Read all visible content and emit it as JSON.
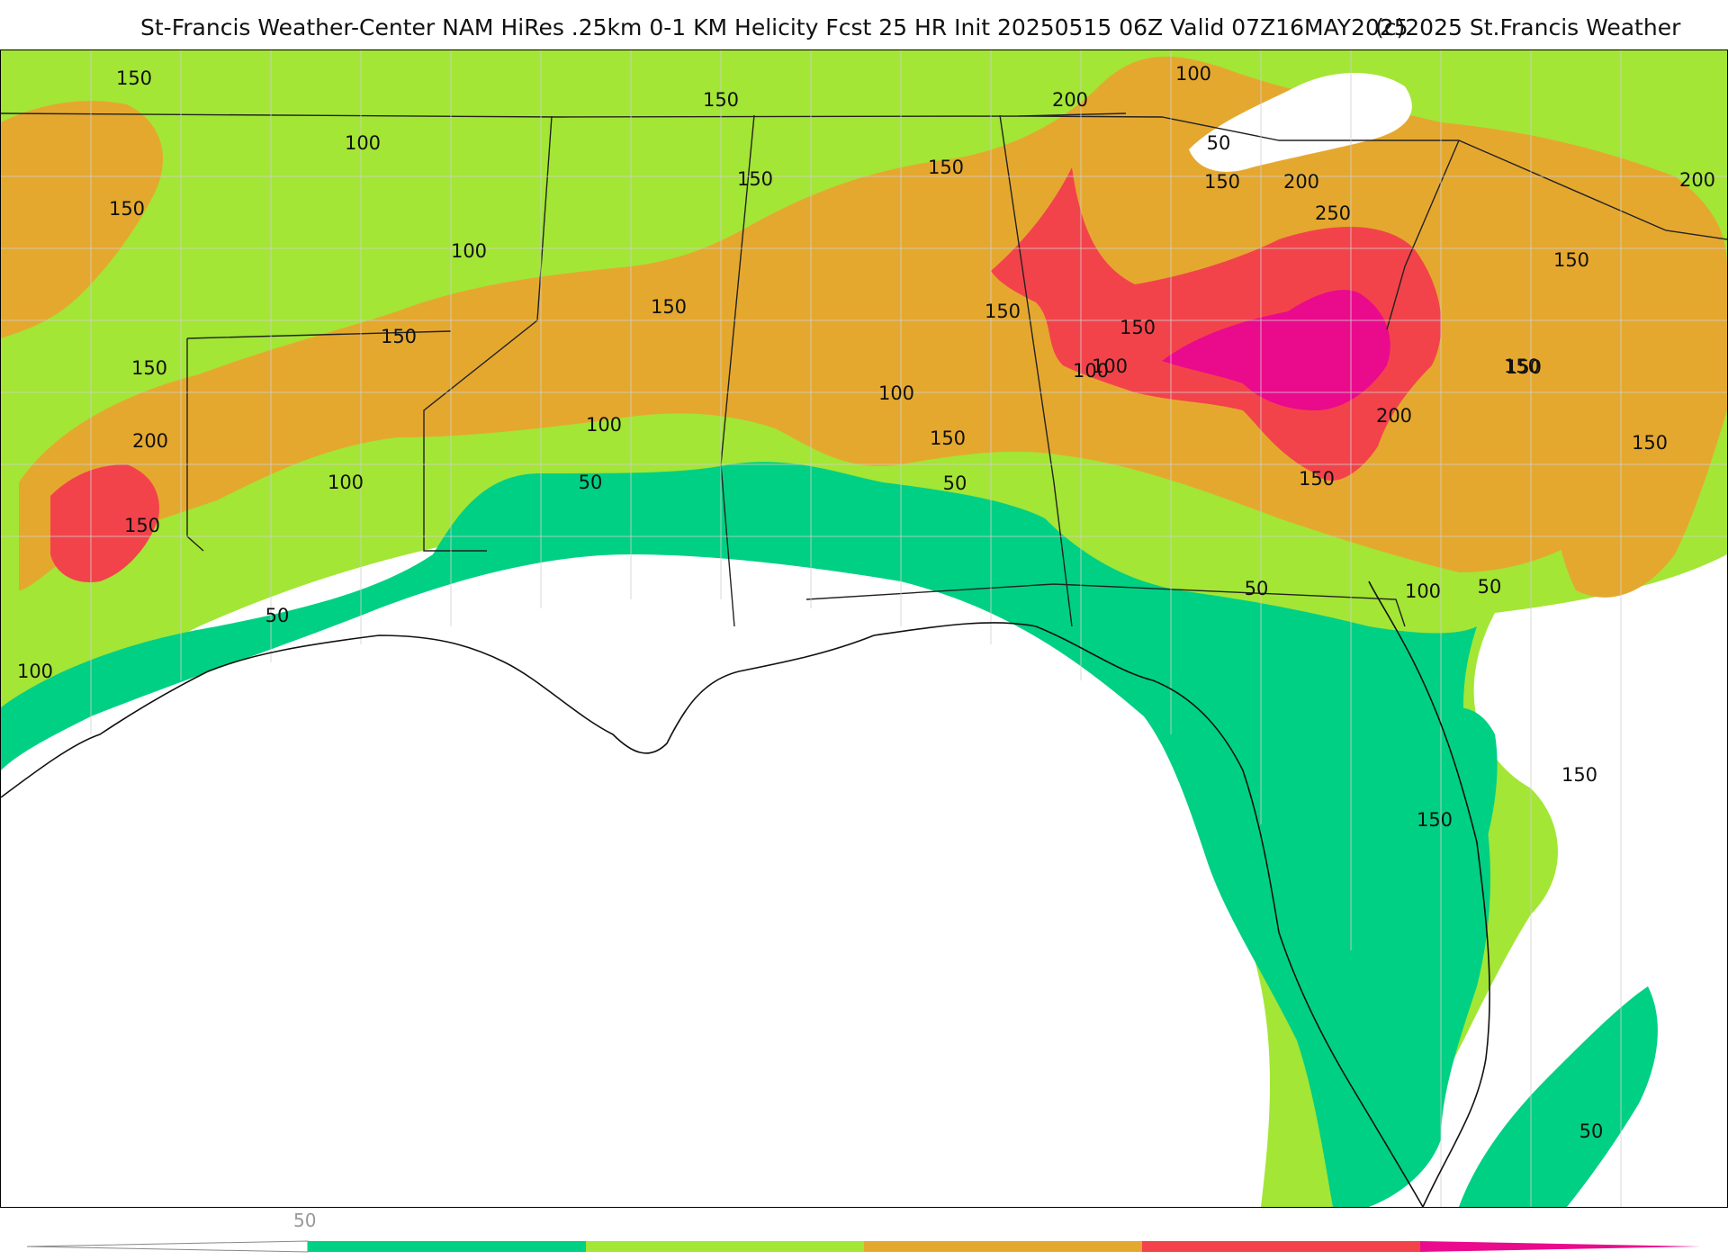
{
  "header": {
    "title": "St-Francis Weather-Center NAM HiRes .25km 0-1 KM Helicity Fcst 25 HR Init 20250515 06Z  Valid 07Z16MAY2025",
    "copyright": "(c)2025 St.Francis Weather"
  },
  "map": {
    "levels": [
      50,
      100,
      150,
      200,
      250
    ],
    "colors": {
      "below": "#ffffff",
      "50": "#00d084",
      "100": "#a3e635",
      "150": "#e5a82f",
      "200": "#f2434b",
      "250": "#ea0a8c"
    },
    "contour_labels": [
      "150",
      "100",
      "150",
      "150",
      "200",
      "150",
      "150",
      "100",
      "150",
      "150",
      "150",
      "150",
      "200",
      "100",
      "50",
      "100",
      "150",
      "200",
      "250",
      "150",
      "150",
      "200",
      "150",
      "150",
      "150",
      "150",
      "200",
      "150",
      "150",
      "100",
      "100",
      "100",
      "50",
      "50",
      "50",
      "100",
      "100",
      "50",
      "100",
      "50",
      "50",
      "150",
      "150"
    ]
  },
  "legend": {
    "tick_label": "50",
    "colors": [
      "#00d084",
      "#a3e635",
      "#e5a82f",
      "#f2434b",
      "#ea0a8c"
    ]
  }
}
